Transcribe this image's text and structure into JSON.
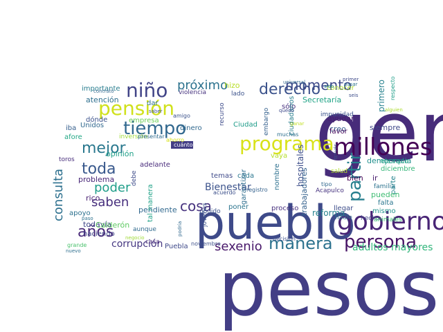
{
  "words": [
    {
      "text": "pesos",
      "color": "#433e85"
    },
    {
      "text": "gente",
      "color": "#472c7a"
    },
    {
      "text": "pueblo",
      "color": "#3e4a89"
    },
    {
      "text": "gobierno",
      "color": "#482475"
    },
    {
      "text": "millones",
      "color": "#440154"
    },
    {
      "text": "persona",
      "color": "#471365"
    },
    {
      "text": "manera",
      "color": "#2c728e"
    },
    {
      "text": "programa",
      "color": "#d8e219"
    },
    {
      "text": "pensión",
      "color": "#d0e11c"
    },
    {
      "text": "tiempo",
      "color": "#31688e"
    },
    {
      "text": "niño",
      "color": "#414487"
    },
    {
      "text": "derecho",
      "color": "#3b528b"
    },
    {
      "text": "mejor",
      "color": "#2a788e"
    },
    {
      "text": "toda",
      "color": "#38588c"
    },
    {
      "text": "años",
      "color": "#482878"
    },
    {
      "text": "partir",
      "color": "#277f8e"
    },
    {
      "text": "consulta",
      "color": "#2d708e"
    },
    {
      "text": "momento",
      "color": "#3e4989"
    },
    {
      "text": "próximo",
      "color": "#2c728e"
    },
    {
      "text": "poder",
      "color": "#1f9e89"
    },
    {
      "text": "saben",
      "color": "#472f7d"
    },
    {
      "text": "cosa",
      "color": "#46327e"
    },
    {
      "text": "sexenio",
      "color": "#48186a"
    },
    {
      "text": "corrupción",
      "color": "#453781"
    },
    {
      "text": "adultos mayores",
      "color": "#31b57b"
    },
    {
      "text": "Bienestar",
      "color": "#3b528b"
    },
    {
      "text": "hospitales",
      "color": "#3d4e8a"
    },
    {
      "text": "trabajadores",
      "color": "#34618d"
    },
    {
      "text": "reforma",
      "color": "#26828e"
    },
    {
      "text": "pendiente",
      "color": "#31688e"
    },
    {
      "text": "democracia",
      "color": "#21908d"
    },
    {
      "text": "importante",
      "color": "#287d8e"
    },
    {
      "text": "atención",
      "color": "#2e6f8e"
    },
    {
      "text": "empresa",
      "color": "#6ece58"
    },
    {
      "text": "dónde",
      "color": "#3b528b"
    },
    {
      "text": "opinión",
      "color": "#1fa088"
    },
    {
      "text": "problema",
      "color": "#482677"
    },
    {
      "text": "apoyo",
      "color": "#2c718e"
    },
    {
      "text": "todavía",
      "color": "#3f4788"
    },
    {
      "text": "Calderón",
      "color": "#5ec962"
    },
    {
      "text": "Puebla",
      "color": "#3e4989"
    },
    {
      "text": "haciendo",
      "color": "#404688"
    },
    {
      "text": "rico",
      "color": "#482071"
    },
    {
      "text": "afore",
      "color": "#22a785"
    },
    {
      "text": "toros",
      "color": "#472d7b"
    },
    {
      "text": "iba",
      "color": "#355f8d"
    },
    {
      "text": "Unidos",
      "color": "#31688e"
    },
    {
      "text": "sólo",
      "color": "#46307e"
    },
    {
      "text": "Secretaría",
      "color": "#20a386"
    },
    {
      "text": "creo",
      "color": "#365c8d"
    },
    {
      "text": "ayudar",
      "color": "#481f70"
    },
    {
      "text": "favor",
      "color": "#46085c"
    },
    {
      "text": "siempre",
      "color": "#3f4889"
    },
    {
      "text": "primero",
      "color": "#26818e"
    },
    {
      "text": "Ciudad",
      "color": "#1e9c89"
    },
    {
      "text": "dinero",
      "color": "#31688e"
    },
    {
      "text": "temas",
      "color": "#3e4a89"
    },
    {
      "text": "cada",
      "color": "#2a768e"
    },
    {
      "text": "vaya",
      "color": "#b5de2b"
    },
    {
      "text": "hizo",
      "color": "#b8de29"
    },
    {
      "text": "lado",
      "color": "#3b528b"
    },
    {
      "text": "dar",
      "color": "#2c728e"
    },
    {
      "text": "adelante",
      "color": "#472a7a"
    },
    {
      "text": "bien",
      "color": "#440154"
    },
    {
      "text": "ir",
      "color": "#481b6d"
    },
    {
      "text": "familia",
      "color": "#2c728e"
    },
    {
      "text": "parte",
      "color": "#25838e"
    },
    {
      "text": "falta",
      "color": "#2a768e"
    },
    {
      "text": "mismo",
      "color": "#21918c"
    },
    {
      "text": "llegar",
      "color": "#3d4d8a"
    },
    {
      "text": "proceso",
      "color": "#46307e"
    },
    {
      "text": "poner",
      "color": "#2b748e"
    },
    {
      "text": "podido",
      "color": "#3b528b"
    },
    {
      "text": "diciembre",
      "color": "#34b679"
    },
    {
      "text": "ejemplo",
      "color": "#20a486"
    },
    {
      "text": "pueden",
      "color": "#3fbc73"
    },
    {
      "text": "hecho",
      "color": "#404688"
    },
    {
      "text": "animales",
      "color": "#3dbc74"
    },
    {
      "text": "garantizar",
      "color": "#2e6d8e"
    },
    {
      "text": "nombre",
      "color": "#2d708e"
    },
    {
      "text": "nadie",
      "color": "#2f6c8e"
    },
    {
      "text": "recurso",
      "color": "#3e4c8a"
    },
    {
      "text": "embargo",
      "color": "#34608d"
    },
    {
      "text": "ciudadanos",
      "color": "#277e8e"
    },
    {
      "text": "jóvenes",
      "color": "#3b528b"
    },
    {
      "text": "tal manera",
      "color": "#1fa187"
    },
    {
      "text": "debe",
      "color": "#3e4c8a"
    },
    {
      "text": "inversión",
      "color": "#9fda3a"
    },
    {
      "text": "cuánto",
      "color": "#ffffff"
    },
    {
      "text": "violencia",
      "color": "#46327e"
    },
    {
      "text": "conocer",
      "color": "#addc30"
    },
    {
      "text": "impunidad",
      "color": "#3b528b"
    },
    {
      "text": "contrato",
      "color": "#31688e"
    },
    {
      "text": "registro",
      "color": "#34618d"
    },
    {
      "text": "acuerdo",
      "color": "#3c4f8a"
    },
    {
      "text": "noviembre",
      "color": "#3c4f8a"
    },
    {
      "text": "decisión",
      "color": "#3d4e8a"
    },
    {
      "text": "tipo",
      "color": "#31688e"
    },
    {
      "text": "Acapulco",
      "color": "#46337f"
    },
    {
      "text": "salud",
      "color": "#b0dd2f"
    },
    {
      "text": "muchas",
      "color": "#2d708e"
    },
    {
      "text": "ahorro",
      "color": "#d8e219"
    },
    {
      "text": "casa",
      "color": "#472a7a"
    },
    {
      "text": "aunque",
      "color": "#306a8e"
    },
    {
      "text": "grande",
      "color": "#4ac16d"
    },
    {
      "text": "nuevo",
      "color": "#2e6f8e"
    },
    {
      "text": "paso",
      "color": "#2c718e"
    },
    {
      "text": "presentar",
      "color": "#2f6b8e"
    },
    {
      "text": "amigo",
      "color": "#3b528b"
    },
    {
      "text": "sido",
      "color": "#26818e"
    },
    {
      "text": "universal",
      "color": "#31688e"
    },
    {
      "text": "primer",
      "color": "#3e4989"
    },
    {
      "text": "seis",
      "color": "#3d4e8a"
    },
    {
      "text": "pasar",
      "color": "#2d708e"
    },
    {
      "text": "alguien",
      "color": "#addc30"
    },
    {
      "text": "respecto",
      "color": "#1f9e89"
    },
    {
      "text": "quedó",
      "color": "#3e4989"
    },
    {
      "text": "través",
      "color": "#3b528b"
    },
    {
      "text": "saber",
      "color": "#3b528b"
    },
    {
      "text": "negocio",
      "color": "#a0da39"
    },
    {
      "text": "podría",
      "color": "#31688e"
    },
    {
      "text": "ganar",
      "color": "#c2df23"
    }
  ]
}
